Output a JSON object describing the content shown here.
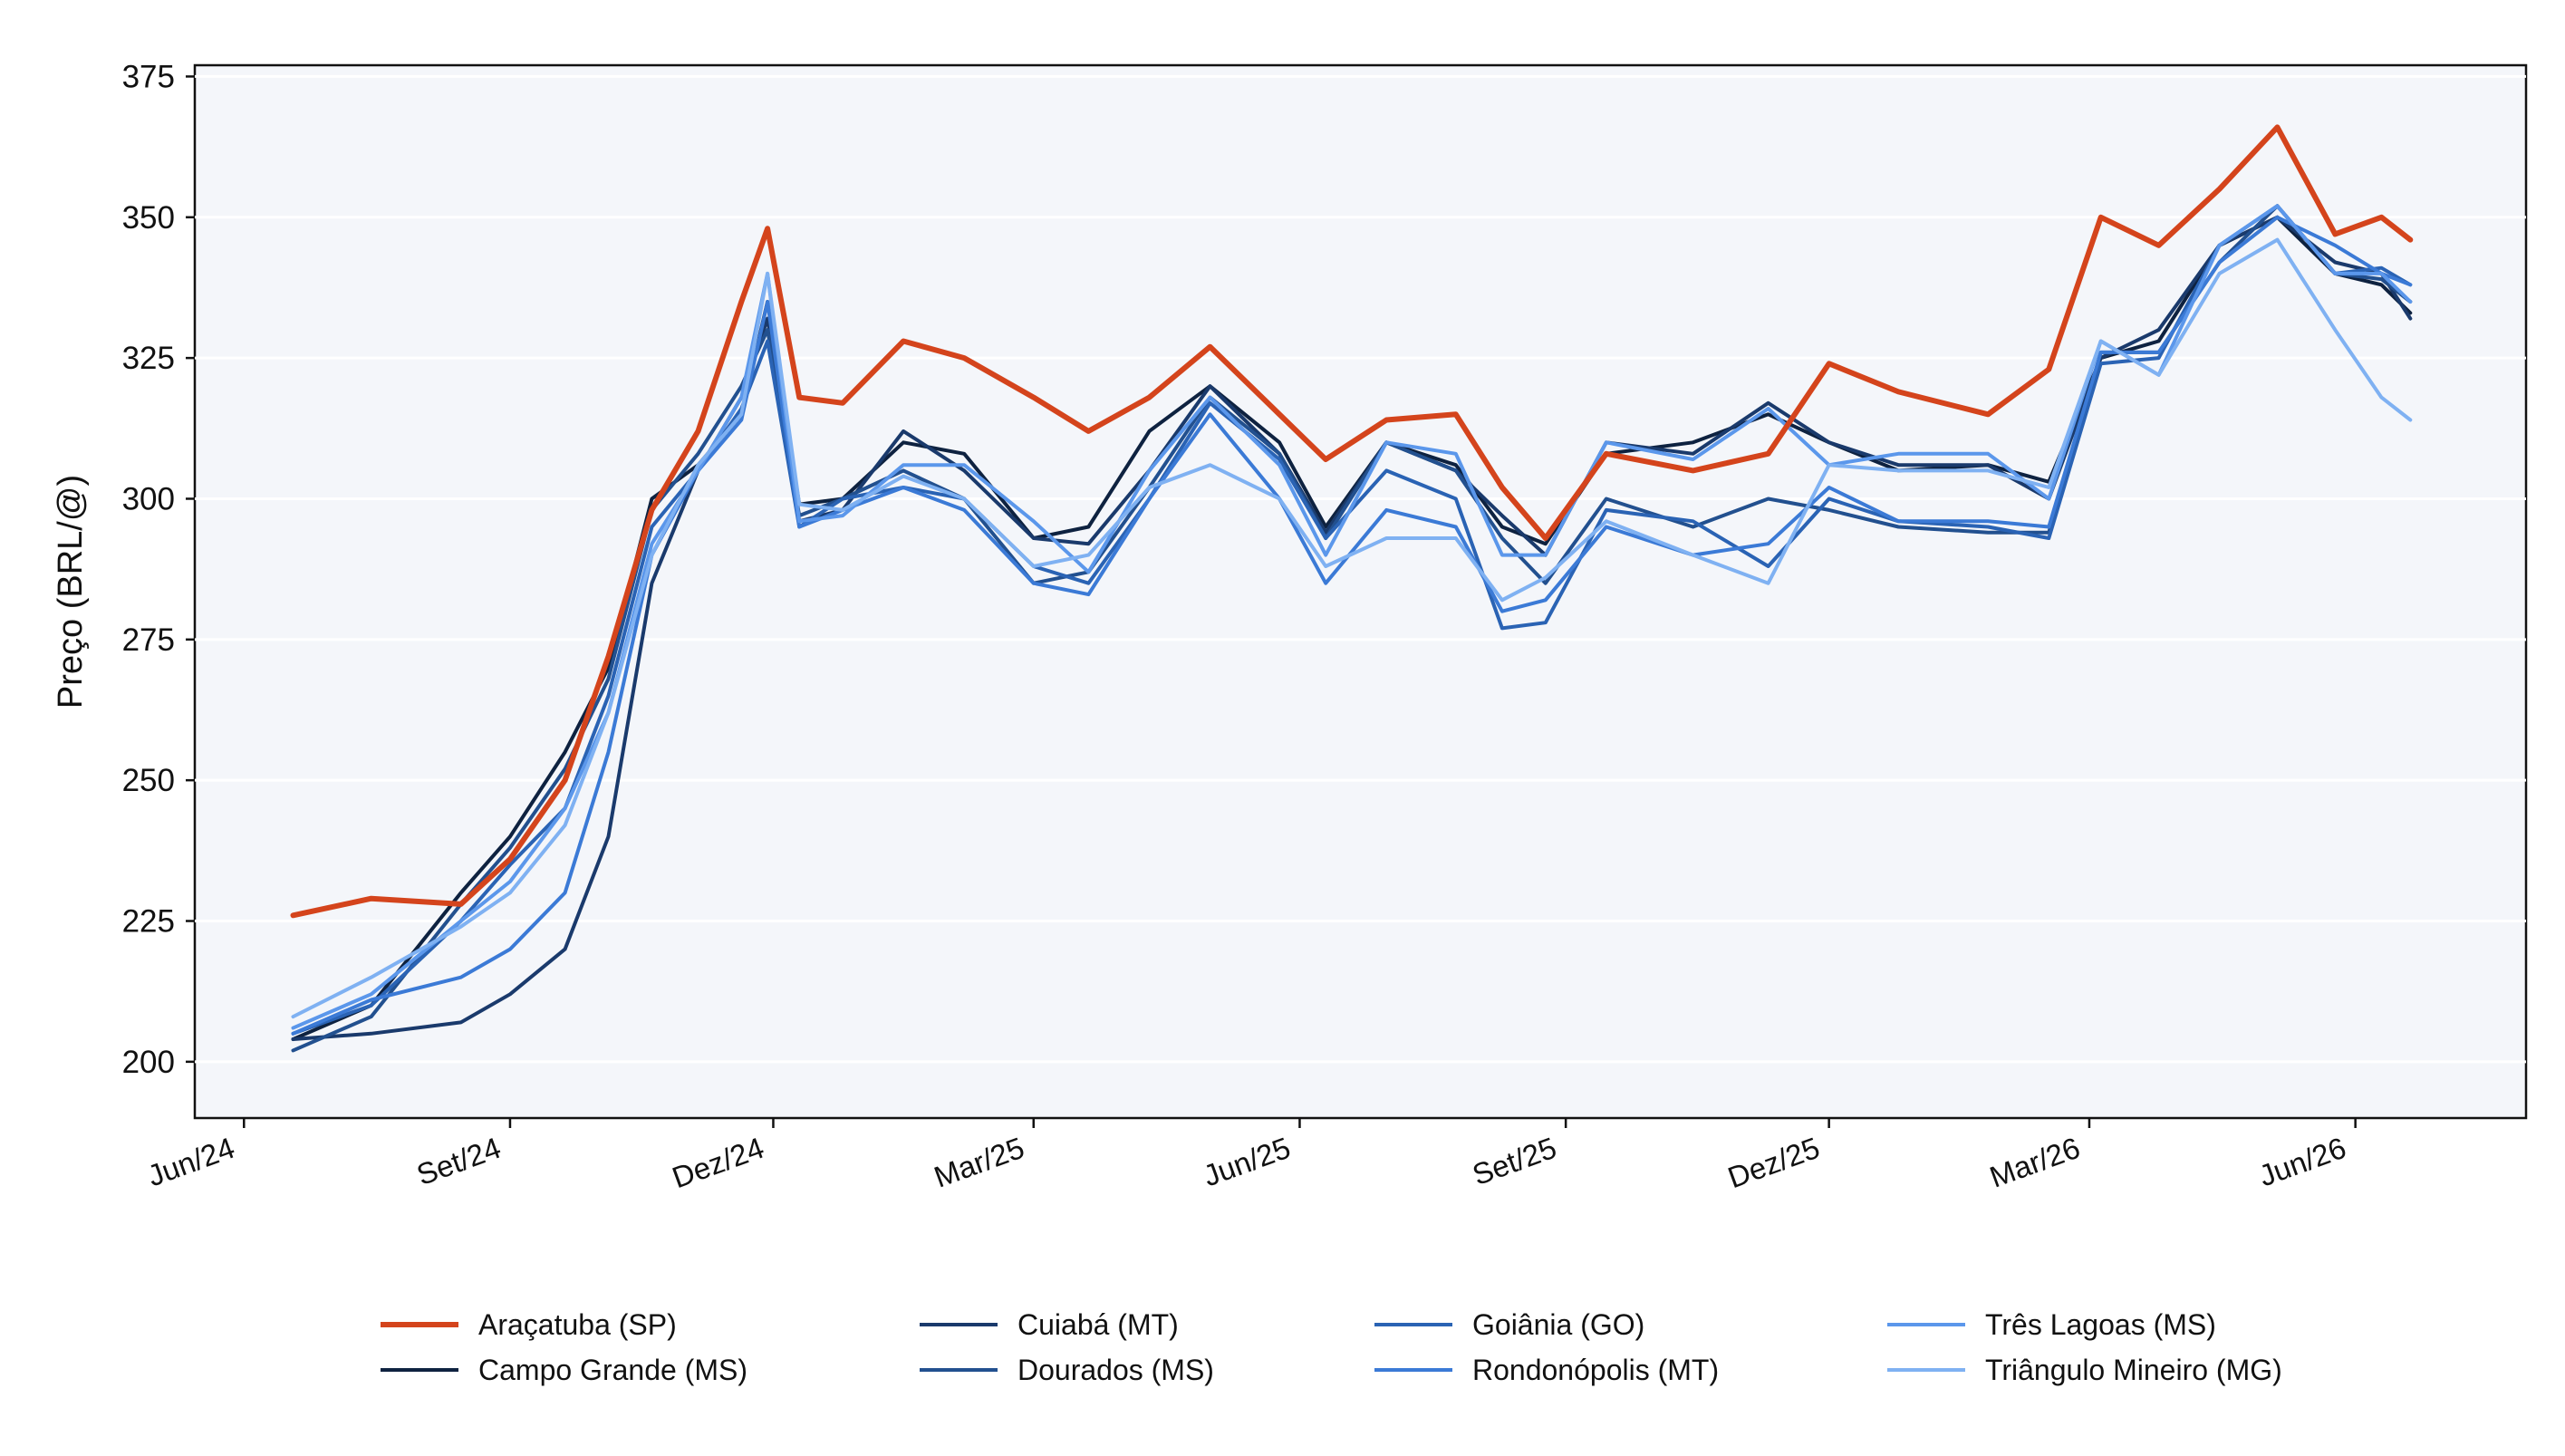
{
  "chart_data": {
    "type": "line",
    "title": "",
    "xlabel": "",
    "ylabel": "Preço (BRL/@)",
    "ylim": [
      190,
      377
    ],
    "xlim": [
      "2024-05-15",
      "2026-07-30"
    ],
    "yticks": [
      200,
      225,
      250,
      275,
      300,
      325,
      350,
      375
    ],
    "xticks": [
      {
        "date": "2024-06-01",
        "label": "Jun/24"
      },
      {
        "date": "2024-09-01",
        "label": "Set/24"
      },
      {
        "date": "2024-12-01",
        "label": "Dez/24"
      },
      {
        "date": "2025-03-01",
        "label": "Mar/25"
      },
      {
        "date": "2025-06-01",
        "label": "Jun/25"
      },
      {
        "date": "2025-09-01",
        "label": "Set/25"
      },
      {
        "date": "2025-12-01",
        "label": "Dez/25"
      },
      {
        "date": "2026-03-01",
        "label": "Mar/26"
      },
      {
        "date": "2026-06-01",
        "label": "Jun/26"
      }
    ],
    "grid": "horizontal",
    "legend_position": "bottom",
    "x": [
      "2024-06-18",
      "2024-07-15",
      "2024-08-15",
      "2024-09-01",
      "2024-09-20",
      "2024-10-05",
      "2024-10-20",
      "2024-11-05",
      "2024-11-20",
      "2024-11-29",
      "2024-12-10",
      "2024-12-25",
      "2025-01-15",
      "2025-02-05",
      "2025-03-01",
      "2025-03-20",
      "2025-04-10",
      "2025-05-01",
      "2025-05-25",
      "2025-06-10",
      "2025-07-01",
      "2025-07-25",
      "2025-08-10",
      "2025-08-25",
      "2025-09-15",
      "2025-10-15",
      "2025-11-10",
      "2025-12-01",
      "2025-12-25",
      "2026-01-25",
      "2026-02-15",
      "2026-03-05",
      "2026-03-25",
      "2026-04-15",
      "2026-05-05",
      "2026-05-25",
      "2026-06-10",
      "2026-06-20"
    ],
    "series": [
      {
        "name": "Araçatuba (SP)",
        "color": "#d4441c",
        "width": 6,
        "values": [
          226,
          229,
          228,
          236,
          250,
          272,
          298,
          312,
          335,
          348,
          318,
          317,
          328,
          325,
          318,
          312,
          318,
          327,
          315,
          307,
          314,
          315,
          302,
          293,
          308,
          305,
          308,
          324,
          319,
          315,
          323,
          350,
          345,
          355,
          366,
          347,
          350,
          346
        ]
      },
      {
        "name": "Cuiabá (MT)",
        "color": "#1a3a6c",
        "width": 4,
        "values": [
          204,
          205,
          207,
          212,
          220,
          240,
          285,
          305,
          318,
          332,
          296,
          298,
          312,
          305,
          293,
          292,
          305,
          320,
          308,
          294,
          310,
          305,
          297,
          290,
          310,
          308,
          317,
          310,
          306,
          306,
          300,
          325,
          330,
          345,
          350,
          342,
          340,
          332
        ]
      },
      {
        "name": "Campo Grande (MS)",
        "color": "#0e2240",
        "width": 4,
        "values": [
          204,
          210,
          230,
          240,
          255,
          270,
          300,
          306,
          315,
          335,
          299,
          300,
          310,
          308,
          293,
          295,
          312,
          320,
          310,
          295,
          310,
          306,
          295,
          292,
          308,
          310,
          315,
          310,
          305,
          306,
          303,
          325,
          328,
          345,
          350,
          340,
          338,
          333
        ]
      },
      {
        "name": "Dourados (MS)",
        "color": "#22508f",
        "width": 4,
        "values": [
          202,
          208,
          228,
          238,
          252,
          268,
          298,
          308,
          320,
          330,
          297,
          300,
          305,
          300,
          285,
          287,
          302,
          318,
          308,
          293,
          310,
          305,
          293,
          285,
          300,
          295,
          300,
          298,
          295,
          294,
          294,
          326,
          326,
          342,
          352,
          340,
          339,
          335
        ]
      },
      {
        "name": "Goiânia (GO)",
        "color": "#2a63b4",
        "width": 4,
        "values": [
          205,
          210,
          225,
          235,
          245,
          265,
          295,
          305,
          316,
          328,
          295,
          300,
          302,
          300,
          288,
          285,
          300,
          317,
          307,
          293,
          305,
          300,
          277,
          278,
          298,
          296,
          288,
          300,
          296,
          295,
          293,
          324,
          325,
          345,
          352,
          340,
          341,
          338
        ]
      },
      {
        "name": "Rondonópolis (MT)",
        "color": "#3b7ad6",
        "width": 4,
        "values": [
          205,
          211,
          215,
          220,
          230,
          255,
          290,
          305,
          314,
          335,
          295,
          298,
          302,
          298,
          285,
          283,
          300,
          315,
          300,
          285,
          298,
          295,
          280,
          282,
          295,
          290,
          292,
          302,
          296,
          296,
          295,
          326,
          326,
          342,
          350,
          345,
          340,
          338
        ]
      },
      {
        "name": "Três Lagoas (MS)",
        "color": "#5b97eb",
        "width": 4,
        "values": [
          206,
          212,
          225,
          232,
          245,
          262,
          292,
          305,
          318,
          340,
          296,
          297,
          306,
          306,
          296,
          287,
          305,
          318,
          306,
          290,
          310,
          308,
          290,
          290,
          310,
          307,
          316,
          306,
          308,
          308,
          300,
          328,
          322,
          345,
          352,
          340,
          340,
          335
        ]
      },
      {
        "name": "Triângulo Mineiro (MG)",
        "color": "#7fb1f2",
        "width": 4,
        "values": [
          208,
          215,
          224,
          230,
          242,
          262,
          290,
          306,
          315,
          340,
          299,
          298,
          304,
          300,
          288,
          290,
          302,
          306,
          300,
          288,
          293,
          293,
          282,
          286,
          296,
          290,
          285,
          306,
          305,
          305,
          302,
          328,
          322,
          340,
          346,
          330,
          318,
          314
        ]
      }
    ]
  }
}
